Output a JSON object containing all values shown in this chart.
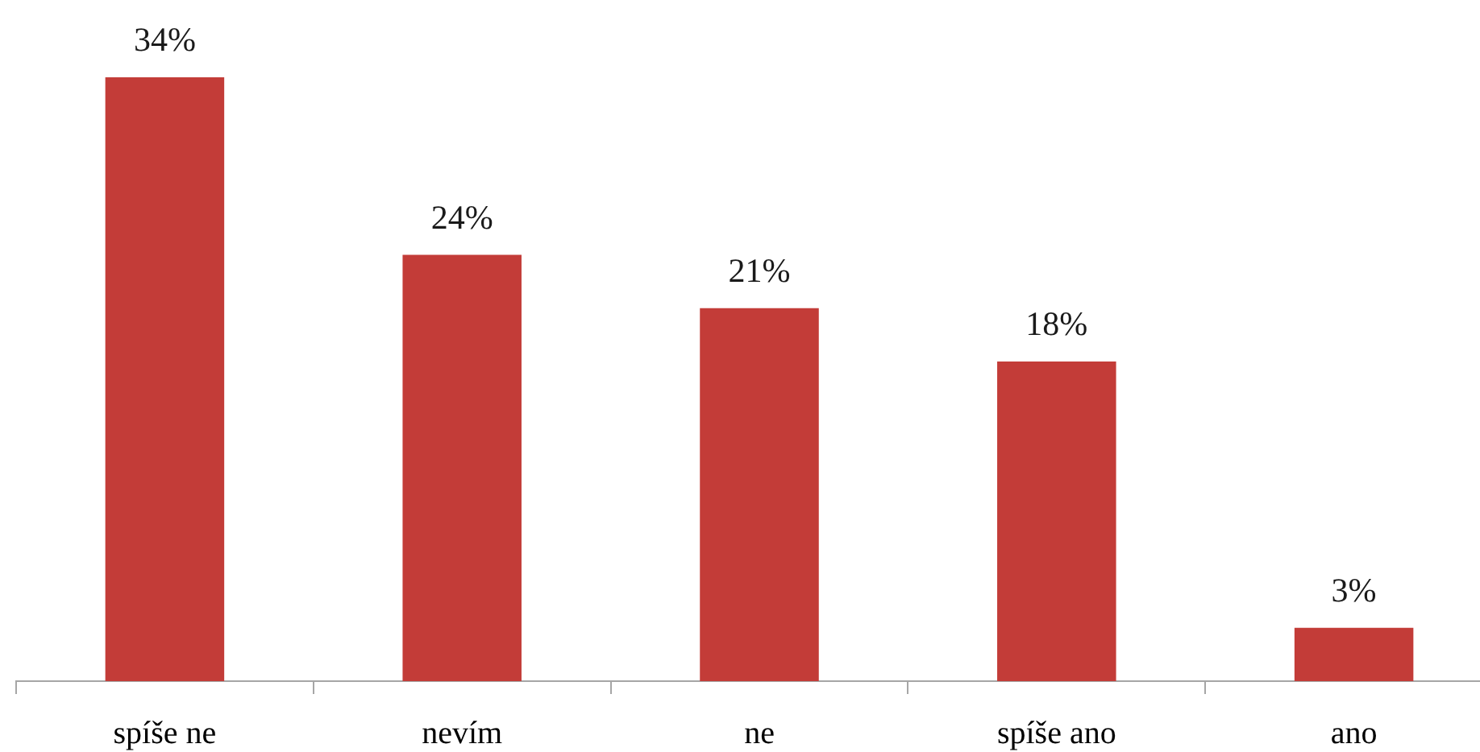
{
  "chart_data": {
    "type": "bar",
    "categories": [
      "spíše ne",
      "nevím",
      "ne",
      "spíše ano",
      "ano"
    ],
    "values": [
      34,
      24,
      21,
      18,
      3
    ],
    "color": "#c33c38",
    "value_labels": [
      "34%",
      "24%",
      "21%",
      "18%",
      "3%"
    ]
  }
}
